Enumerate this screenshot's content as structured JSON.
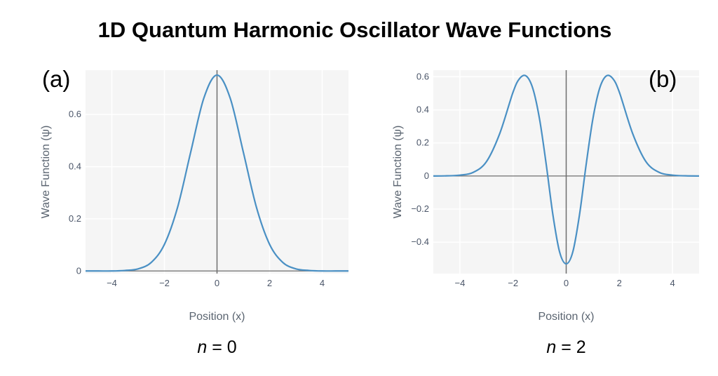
{
  "title": "1D Quantum Harmonic Oscillator Wave Functions",
  "colors": {
    "line": "#4a90c4",
    "plot_bg": "#f5f5f5",
    "grid": "#ffffff",
    "zero_line": "#6e6e6e"
  },
  "chart_data": [
    {
      "type": "line",
      "panel_label": "(a)",
      "caption_var": "n",
      "caption_rest": " = 0",
      "quantum_number": 0,
      "xlabel": "Position (x)",
      "ylabel": "Wave Function (ψ)",
      "xlim": [
        -5,
        5
      ],
      "ylim": [
        -0.01,
        0.77
      ],
      "xticks": [
        -4,
        -2,
        0,
        2,
        4
      ],
      "xtick_labels": [
        "−4",
        "−2",
        "0",
        "2",
        "4"
      ],
      "yticks": [
        0,
        0.2,
        0.4,
        0.6
      ],
      "ytick_labels": [
        "0",
        "0.2",
        "0.4",
        "0.6"
      ],
      "grid": true,
      "series": [
        {
          "x": [
            -5,
            -4.5,
            -4,
            -3.5,
            -3,
            -2.5,
            -2,
            -1.5,
            -1,
            -0.5,
            0,
            0.5,
            1,
            1.5,
            2,
            2.5,
            3,
            3.5,
            4,
            4.5,
            5
          ],
          "y": [
            0,
            0,
            0,
            0.002,
            0.008,
            0.033,
            0.102,
            0.244,
            0.456,
            0.663,
            0.751,
            0.663,
            0.456,
            0.244,
            0.102,
            0.033,
            0.008,
            0.002,
            0,
            0,
            0
          ]
        }
      ]
    },
    {
      "type": "line",
      "panel_label": "(b)",
      "caption_var": "n",
      "caption_rest": " = 2",
      "quantum_number": 2,
      "xlabel": "Position (x)",
      "ylabel": "Wave Function (ψ)",
      "xlim": [
        -5,
        5
      ],
      "ylim": [
        -0.59,
        0.64
      ],
      "xticks": [
        -4,
        -2,
        0,
        2,
        4
      ],
      "xtick_labels": [
        "−4",
        "−2",
        "0",
        "2",
        "4"
      ],
      "yticks": [
        -0.4,
        -0.2,
        0,
        0.2,
        0.4,
        0.6
      ],
      "ytick_labels": [
        "−0.4",
        "−0.2",
        "0",
        "0.2",
        "0.4",
        "0.6"
      ],
      "grid": true,
      "series": [
        {
          "x": [
            -5,
            -4.5,
            -4,
            -3.5,
            -3,
            -2.5,
            -2,
            -1.75,
            -1.5,
            -1.25,
            -1,
            -0.75,
            -0.5,
            -0.25,
            0,
            0.25,
            0.5,
            0.75,
            1,
            1.25,
            1.5,
            1.75,
            2,
            2.5,
            3,
            3.5,
            4,
            4.5,
            5
          ],
          "y": [
            0,
            0.001,
            0.005,
            0.022,
            0.087,
            0.257,
            0.507,
            0.59,
            0.604,
            0.526,
            0.342,
            0.068,
            -0.235,
            -0.458,
            -0.531,
            -0.458,
            -0.235,
            0.068,
            0.342,
            0.526,
            0.604,
            0.59,
            0.507,
            0.257,
            0.087,
            0.022,
            0.005,
            0.001,
            0
          ]
        }
      ]
    }
  ]
}
